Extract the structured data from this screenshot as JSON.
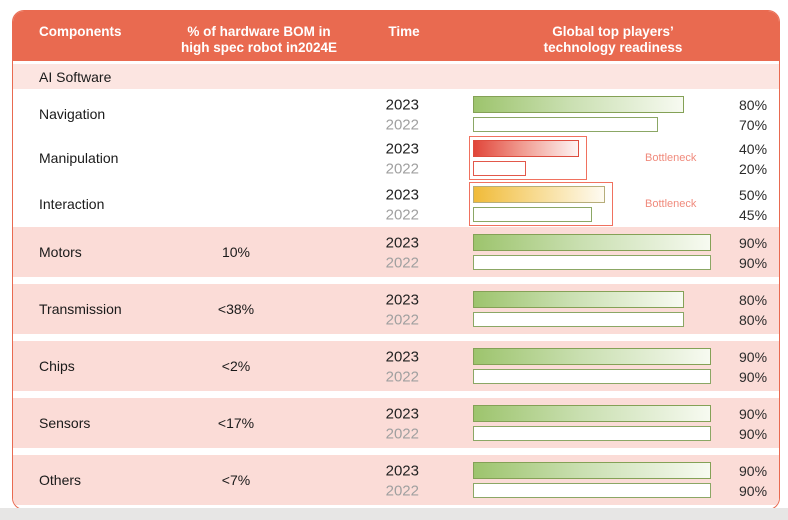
{
  "header": {
    "components": "Components",
    "bom_line1": "% of hardware BOM in",
    "bom_line2": "high spec robot in2024E",
    "time": "Time",
    "readiness_line1": "Global top players’",
    "readiness_line2": "technology readiness"
  },
  "group_row": {
    "label": "AI Software"
  },
  "colors": {
    "header_bg": "#e96a50",
    "card_border": "#e96a50",
    "pink_row": "#fbdcd7",
    "group_row_pink": "#fce5e1",
    "bottleneck_red": "#f0715f",
    "bottleneck_text": "#f08a7c",
    "year_2023": "#222222",
    "year_2022": "#a0a0a0",
    "footer_strip": "#e7e6e5"
  },
  "bar_styles": {
    "green": {
      "fill_from": "#9dc46d",
      "fill_mid": "#c9dfb0",
      "fill_to": "#f7faf1",
      "border": "#84a156",
      "filled": true
    },
    "outline-green": {
      "border": "#8ba765",
      "filled": false
    },
    "red": {
      "fill_from": "#e1463a",
      "fill_mid": "#f0998e",
      "fill_to": "#fdf4f3",
      "border": "#dd4c3e",
      "filled": true
    },
    "outline-red": {
      "border": "#e2584a",
      "filled": false
    },
    "yellow": {
      "fill_from": "#f0bb39",
      "fill_mid": "#f7d98c",
      "fill_to": "#fefbf2",
      "border": "#b6ad7a",
      "filled": true
    }
  },
  "chart_data": {
    "type": "bar",
    "unit": "%",
    "axis_max": 100,
    "bottleneck_label": "Bottleneck",
    "group_label": "AI Software",
    "rows": [
      {
        "component": "Navigation",
        "key": "navigation",
        "section": "ai",
        "bom": "",
        "bottleneck": false,
        "bars": [
          {
            "year": "2023",
            "value": 80,
            "style": "green"
          },
          {
            "year": "2022",
            "value": 70,
            "style": "outline-green"
          }
        ]
      },
      {
        "component": "Manipulation",
        "key": "manipulation",
        "section": "ai",
        "bom": "",
        "bottleneck": true,
        "bars": [
          {
            "year": "2023",
            "value": 40,
            "style": "red"
          },
          {
            "year": "2022",
            "value": 20,
            "style": "outline-red"
          }
        ]
      },
      {
        "component": "Interaction",
        "key": "interaction",
        "section": "ai",
        "bom": "",
        "bottleneck": true,
        "bars": [
          {
            "year": "2023",
            "value": 50,
            "style": "yellow"
          },
          {
            "year": "2022",
            "value": 45,
            "style": "outline-green"
          }
        ]
      },
      {
        "component": "Motors",
        "key": "motors",
        "section": "pink",
        "bom": "10%",
        "bottleneck": false,
        "bars": [
          {
            "year": "2023",
            "value": 90,
            "style": "green"
          },
          {
            "year": "2022",
            "value": 90,
            "style": "outline-green"
          }
        ]
      },
      {
        "component": "Transmission",
        "key": "transmission",
        "section": "pink",
        "bom": "<38%",
        "bottleneck": false,
        "bars": [
          {
            "year": "2023",
            "value": 80,
            "style": "green"
          },
          {
            "year": "2022",
            "value": 80,
            "style": "outline-green"
          }
        ]
      },
      {
        "component": "Chips",
        "key": "chips",
        "section": "pink",
        "bom": "<2%",
        "bottleneck": false,
        "bars": [
          {
            "year": "2023",
            "value": 90,
            "style": "green"
          },
          {
            "year": "2022",
            "value": 90,
            "style": "outline-green"
          }
        ]
      },
      {
        "component": "Sensors",
        "key": "sensors",
        "section": "pink",
        "bom": "<17%",
        "bottleneck": false,
        "bars": [
          {
            "year": "2023",
            "value": 90,
            "style": "green"
          },
          {
            "year": "2022",
            "value": 90,
            "style": "outline-green"
          }
        ]
      },
      {
        "component": "Others",
        "key": "others",
        "section": "pink",
        "bom": "<7%",
        "bottleneck": false,
        "bars": [
          {
            "year": "2023",
            "value": 90,
            "style": "green"
          },
          {
            "year": "2022",
            "value": 90,
            "style": "outline-green"
          }
        ]
      }
    ]
  }
}
